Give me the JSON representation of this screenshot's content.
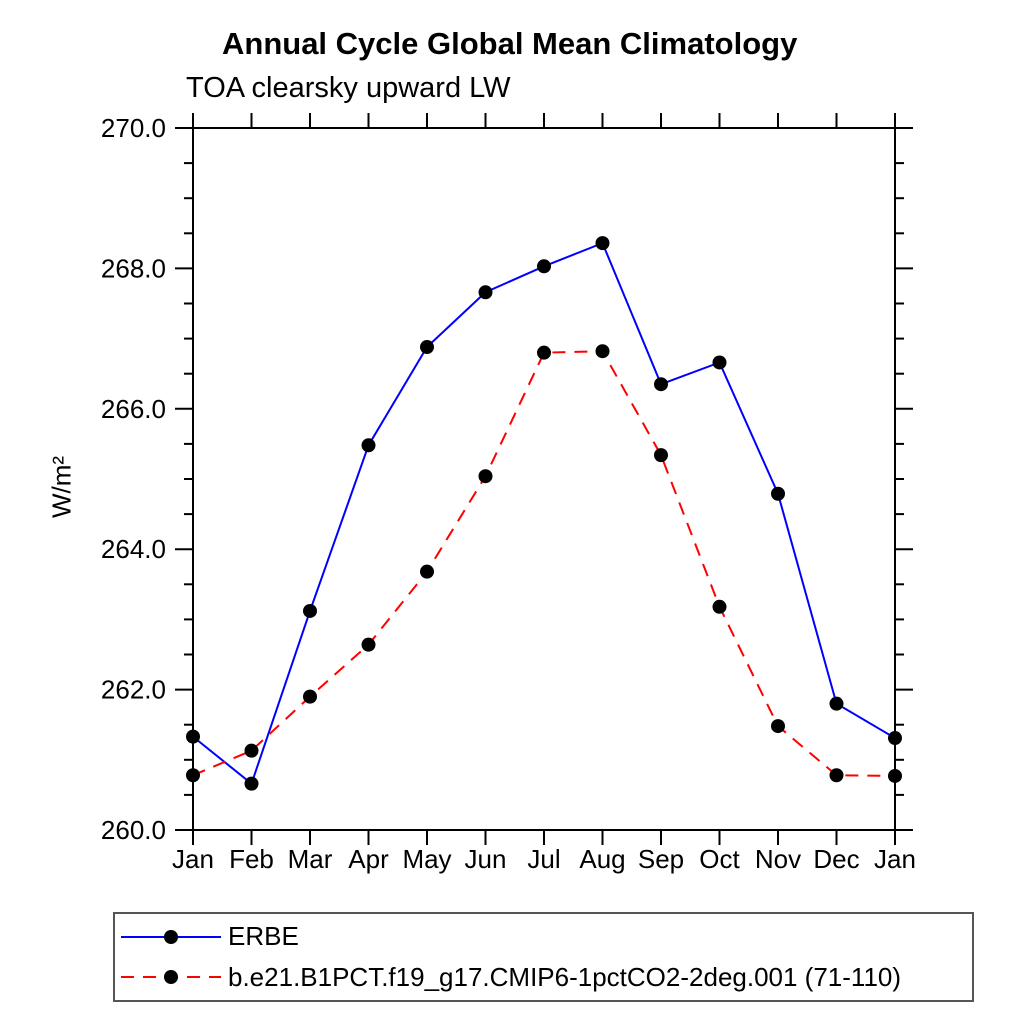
{
  "title": "Annual Cycle Global Mean Climatology",
  "subtitle": "TOA clearsky upward LW",
  "chart_data": {
    "type": "line",
    "title": "Annual Cycle Global Mean Climatology",
    "subtitle": "TOA clearsky upward LW",
    "ylabel": "W/m²",
    "xlabel": "",
    "categories": [
      "Jan",
      "Feb",
      "Mar",
      "Apr",
      "May",
      "Jun",
      "Jul",
      "Aug",
      "Sep",
      "Oct",
      "Nov",
      "Dec",
      "Jan"
    ],
    "ylim": [
      260.0,
      270.0
    ],
    "ytick_values": [
      260.0,
      262.0,
      264.0,
      266.0,
      268.0,
      270.0
    ],
    "ytick_labels": [
      "260.0",
      "262.0",
      "264.0",
      "266.0",
      "268.0",
      "270.0"
    ],
    "yminor_step": 0.5,
    "grid": false,
    "legend_position": "bottom",
    "frame_color": "#000000",
    "marker_color": "#000000",
    "series": [
      {
        "name": "ERBE",
        "color": "#0000ff",
        "style": "solid",
        "marker": "circle",
        "values": [
          261.33,
          260.66,
          263.12,
          265.48,
          266.88,
          267.66,
          268.03,
          268.36,
          266.35,
          266.66,
          264.79,
          261.8,
          261.31
        ]
      },
      {
        "name": "b.e21.B1PCT.f19_g17.CMIP6-1pctCO2-2deg.001 (71-110)",
        "color": "#ff0000",
        "style": "dashed",
        "marker": "circle",
        "values": [
          260.78,
          261.13,
          261.9,
          262.64,
          263.68,
          265.04,
          266.8,
          266.82,
          265.34,
          263.18,
          261.48,
          260.78,
          260.77
        ]
      }
    ]
  }
}
